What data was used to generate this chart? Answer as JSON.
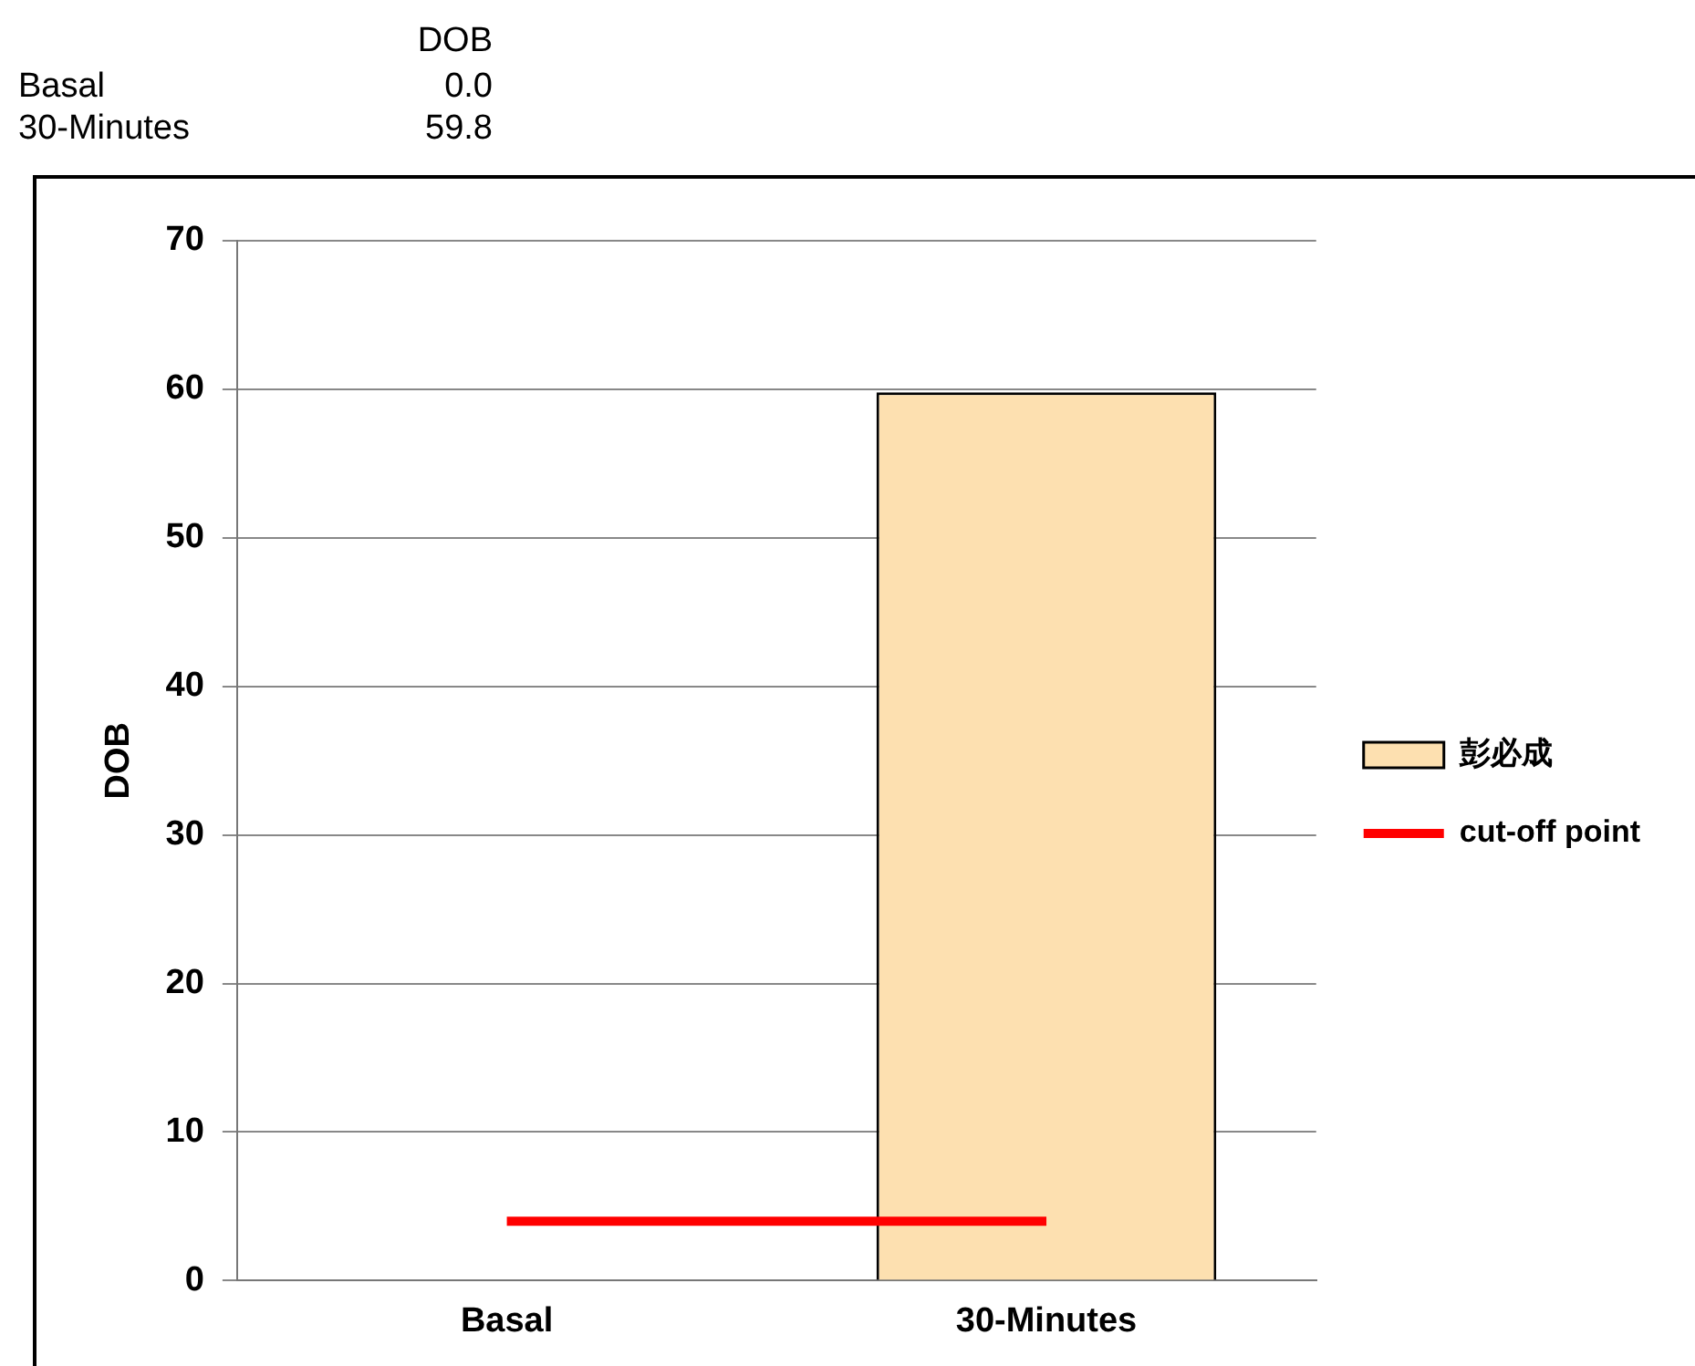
{
  "chart_data": {
    "type": "bar",
    "ylabel": "DOB",
    "categories": [
      "Basal",
      "30-Minutes"
    ],
    "series": [
      {
        "name": "彭必成",
        "color": "#fde0b0",
        "values": [
          0.0,
          59.8
        ]
      },
      {
        "name": "cut-off point",
        "type": "line",
        "color": "#ff0000",
        "values": [
          4,
          4
        ]
      }
    ],
    "ylim": [
      0,
      70
    ],
    "yticks": [
      0,
      10,
      20,
      30,
      40,
      50,
      60,
      70
    ],
    "grid": "y",
    "legend": "right",
    "annotations": [
      "DOB",
      "Basal",
      "0.0",
      "30-Minutes",
      "59.8"
    ]
  }
}
